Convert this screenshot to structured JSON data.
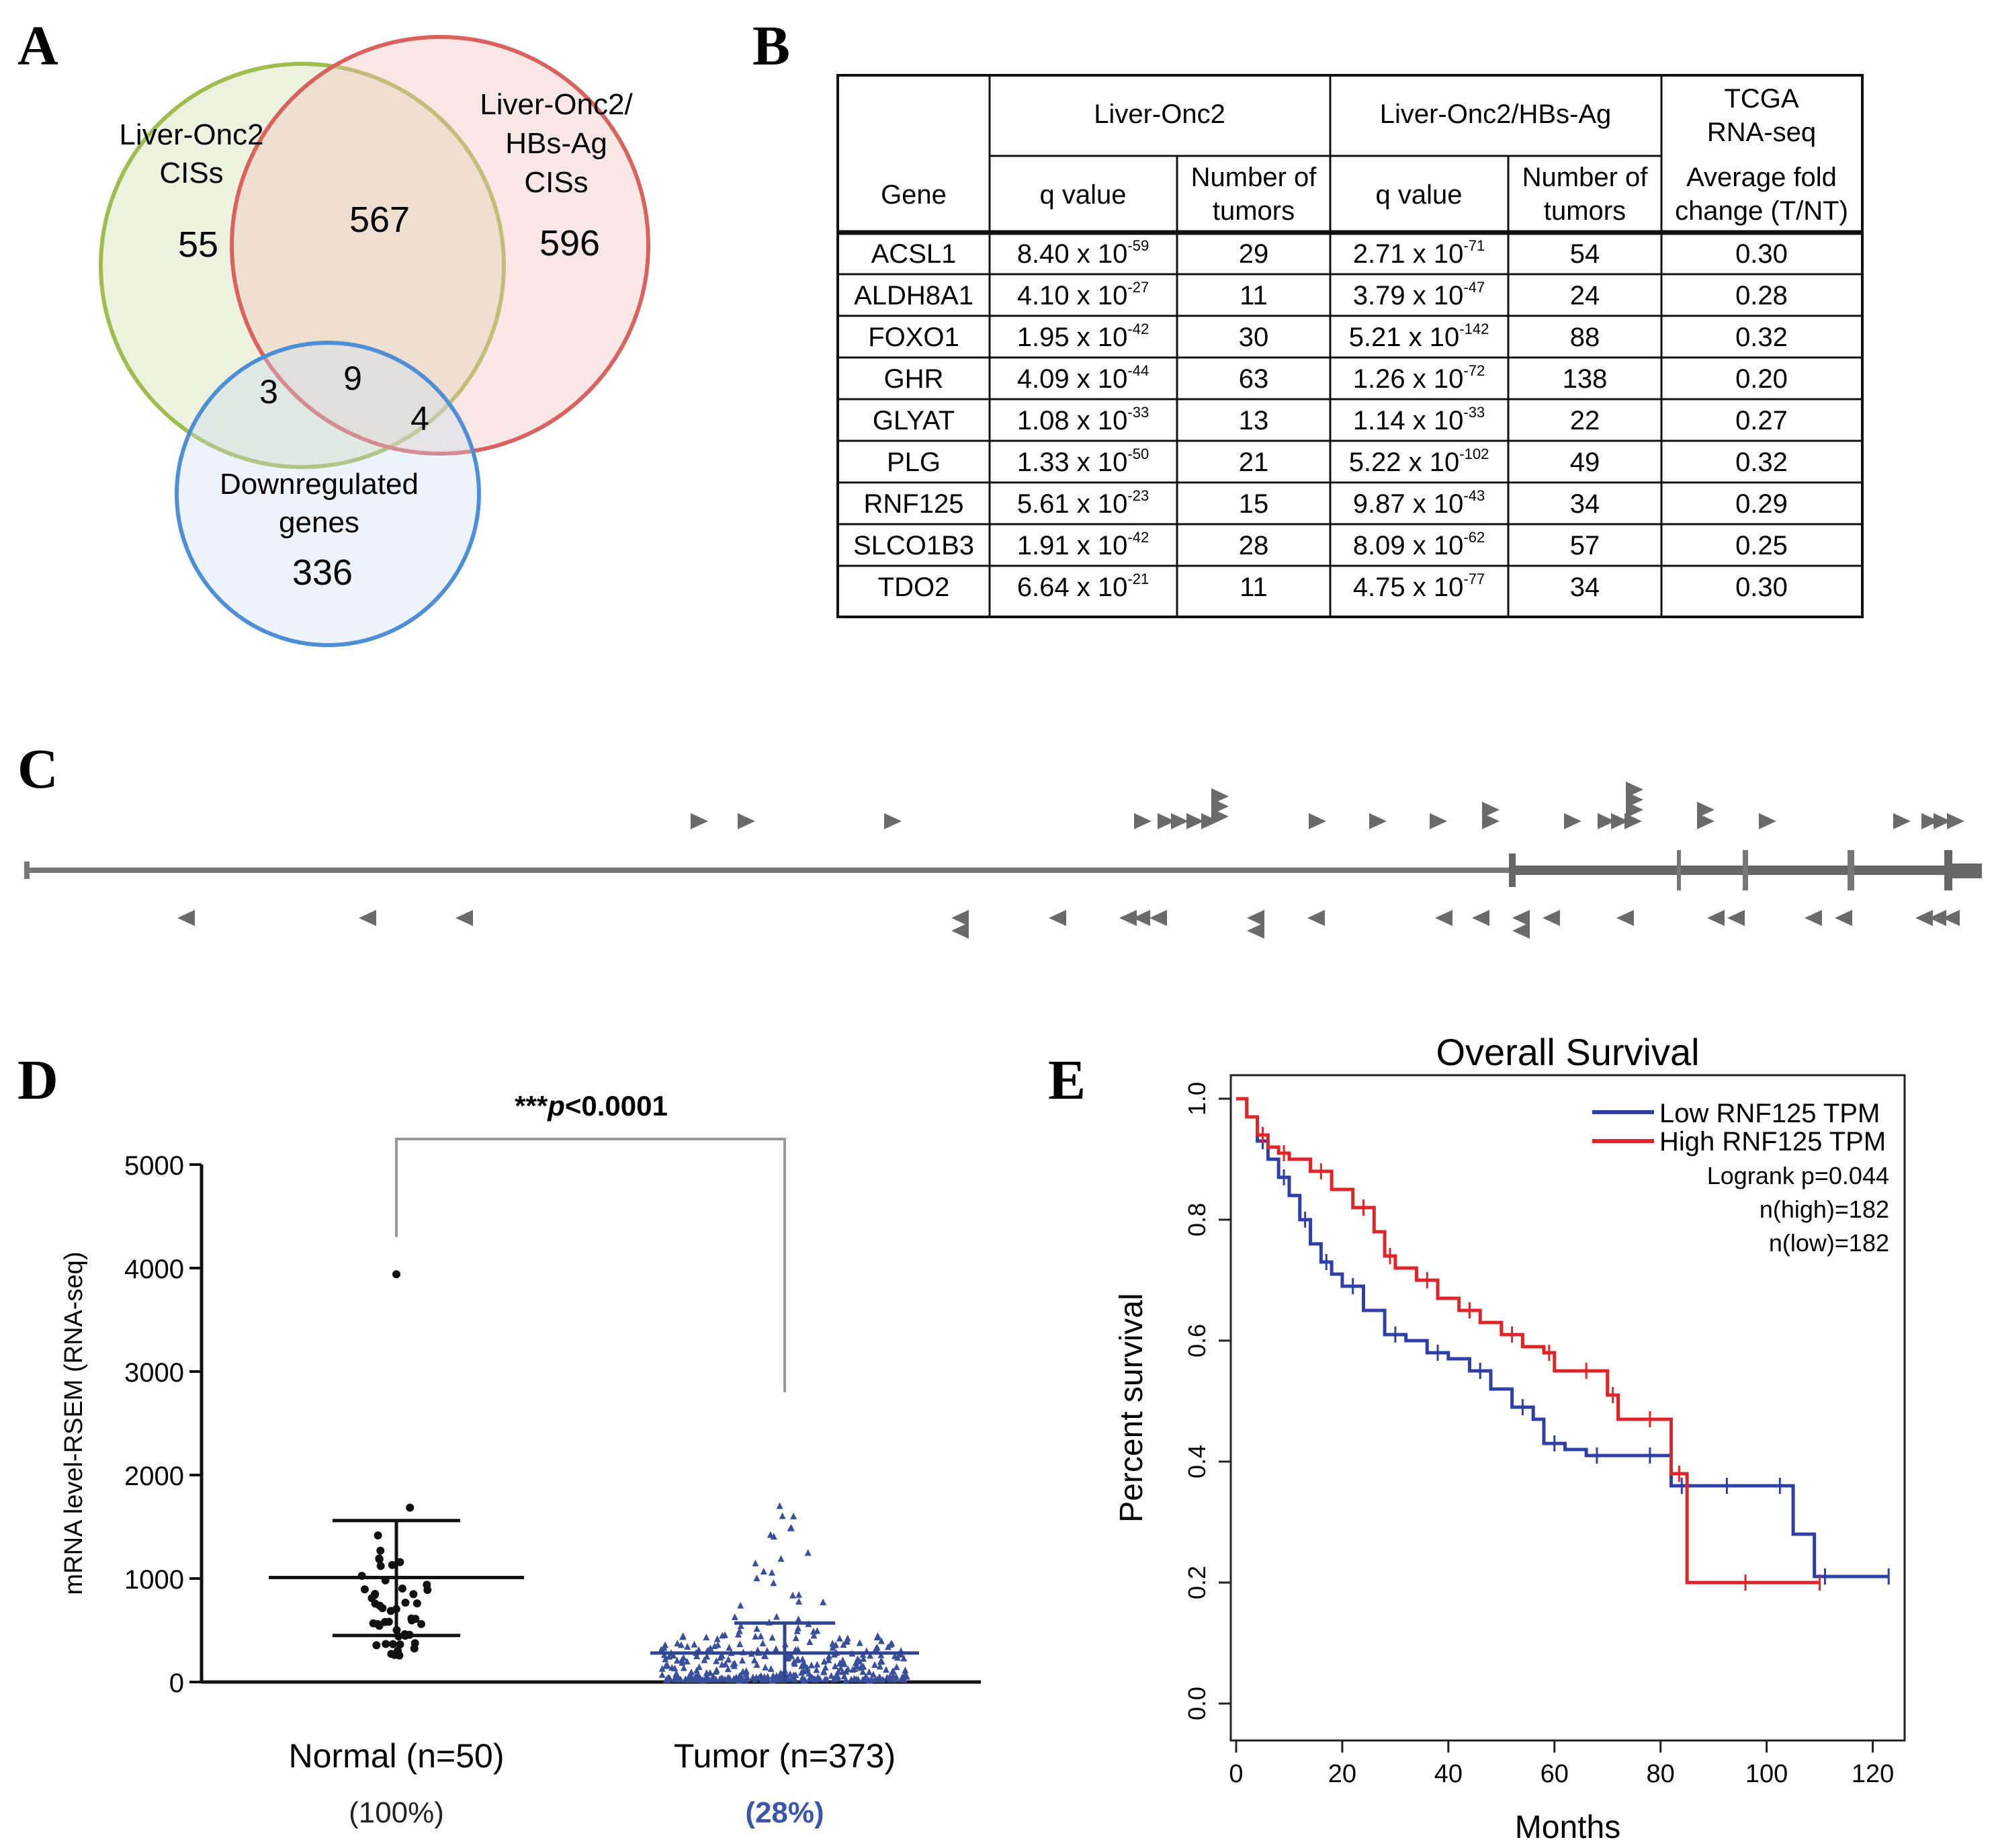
{
  "panels": {
    "a": "A",
    "b": "B",
    "c": "C",
    "d": "D",
    "e": "E"
  },
  "venn": {
    "green_label_1": "Liver-Onc2",
    "green_label_2": "CISs",
    "red_label_1": "Liver-Onc2/",
    "red_label_2": "HBs-Ag",
    "red_label_3": "CISs",
    "blue_label_1": "Downregulated",
    "blue_label_2": "genes",
    "green_only": "55",
    "green_red": "567",
    "red_only": "596",
    "green_blue": "3",
    "all_three": "9",
    "red_blue": "4",
    "blue_only": "336",
    "colors": {
      "green": "#9ebd4e",
      "red": "#d9625e",
      "blue": "#4e8ed6"
    }
  },
  "table": {
    "group_liver_onc2": "Liver-Onc2",
    "group_hbs": "Liver-Onc2/HBs-Ag",
    "group_tcga_1": "TCGA",
    "group_tcga_2": "RNA-seq",
    "col_gene": "Gene",
    "col_q1": "q value",
    "col_n1_a": "Number of",
    "col_n1_b": "tumors",
    "col_q2": "q value",
    "col_n2_a": "Number of",
    "col_n2_b": "tumors",
    "col_fc_a": "Average fold",
    "col_fc_b": "change (T/NT)",
    "rows": [
      {
        "gene": "ACSL1",
        "q1": "8.40 x 10",
        "q1e": "-59",
        "n1": "29",
        "q2": "2.71 x 10",
        "q2e": "-71",
        "n2": "54",
        "fc": "0.30"
      },
      {
        "gene": "ALDH8A1",
        "q1": "4.10 x 10",
        "q1e": "-27",
        "n1": "11",
        "q2": "3.79 x 10",
        "q2e": "-47",
        "n2": "24",
        "fc": "0.28"
      },
      {
        "gene": "FOXO1",
        "q1": "1.95 x 10",
        "q1e": "-42",
        "n1": "30",
        "q2": "5.21 x 10",
        "q2e": "-142",
        "n2": "88",
        "fc": "0.32"
      },
      {
        "gene": "GHR",
        "q1": "4.09 x 10",
        "q1e": "-44",
        "n1": "63",
        "q2": "1.26 x 10",
        "q2e": "-72",
        "n2": "138",
        "fc": "0.20"
      },
      {
        "gene": "GLYAT",
        "q1": "1.08 x 10",
        "q1e": "-33",
        "n1": "13",
        "q2": "1.14 x 10",
        "q2e": "-33",
        "n2": "22",
        "fc": "0.27"
      },
      {
        "gene": "PLG",
        "q1": "1.33 x 10",
        "q1e": "-50",
        "n1": "21",
        "q2": "5.22 x 10",
        "q2e": "-102",
        "n2": "49",
        "fc": "0.32"
      },
      {
        "gene": "RNF125",
        "q1": "5.61 x 10",
        "q1e": "-23",
        "n1": "15",
        "q2": "9.87 x 10",
        "q2e": "-43",
        "n2": "34",
        "fc": "0.29"
      },
      {
        "gene": "SLCO1B3",
        "q1": "1.91 x 10",
        "q1e": "-42",
        "n1": "28",
        "q2": "8.09 x 10",
        "q2e": "-62",
        "n2": "57",
        "fc": "0.25"
      },
      {
        "gene": "TDO2",
        "q1": "6.64 x 10",
        "q1e": "-21",
        "n1": "11",
        "q2": "4.75 x 10",
        "q2e": "-77",
        "n2": "34",
        "fc": "0.30"
      }
    ]
  },
  "chart_data": [
    {
      "type": "scatter",
      "panel": "D",
      "title": "",
      "annotation_stars": "***",
      "annotation_p": "p",
      "annotation_value": "<0.0001",
      "ylabel": "mRNA level-RSEM (RNA-seq)",
      "ylim": [
        0,
        5000
      ],
      "yticks": [
        "0",
        "1000",
        "2000",
        "3000",
        "4000",
        "5000"
      ],
      "ytick_values": [
        0,
        1000,
        2000,
        3000,
        4000,
        5000
      ],
      "categories": [
        "Normal (n=50)",
        "Tumor (n=373)"
      ],
      "category_pct": [
        "(100%)",
        "(28%)"
      ],
      "groups": [
        {
          "name": "Normal (n=50)",
          "mean": 1010,
          "sd_upper": 1560,
          "sd_lower": 450,
          "outlier": 3940,
          "max_cluster": 1800,
          "color": "#111111",
          "marker": "circle"
        },
        {
          "name": "Tumor (n=373)",
          "mean": 280,
          "sd_upper": 570,
          "sd_lower": 0,
          "max_cluster": 1800,
          "color": "#3a4f9c",
          "marker": "triangle"
        }
      ],
      "pct_colors": [
        "#222222",
        "#3b55a8"
      ]
    },
    {
      "type": "line",
      "panel": "E",
      "title": "Overall Survival",
      "xlabel": "Months",
      "ylabel": "Percent survival",
      "xlim": [
        0,
        125
      ],
      "ylim": [
        0,
        1.0
      ],
      "xticks": [
        "0",
        "20",
        "40",
        "60",
        "80",
        "100",
        "120"
      ],
      "xtick_values": [
        0,
        20,
        40,
        60,
        80,
        100,
        120
      ],
      "yticks": [
        "0.0",
        "0.2",
        "0.4",
        "0.6",
        "0.8",
        "1.0"
      ],
      "ytick_values": [
        0,
        0.2,
        0.4,
        0.6,
        0.8,
        1.0
      ],
      "legend": {
        "low": "Low RNF125 TPM",
        "high": "High RNF125 TPM",
        "logrank": "Logrank p=0.044",
        "n_high": "n(high)=182",
        "n_low": "n(low)=182"
      },
      "series": [
        {
          "name": "Low RNF125 TPM",
          "color": "#2e3fa8",
          "x": [
            0,
            2,
            4,
            6,
            8,
            10,
            12,
            14,
            16,
            18,
            20,
            24,
            28,
            32,
            36,
            40,
            44,
            48,
            52,
            56,
            58,
            62,
            66,
            70,
            76,
            80,
            82,
            86,
            90,
            95,
            100,
            105,
            109,
            113,
            123
          ],
          "y": [
            1.0,
            0.97,
            0.93,
            0.9,
            0.87,
            0.84,
            0.8,
            0.76,
            0.73,
            0.71,
            0.69,
            0.65,
            0.61,
            0.6,
            0.58,
            0.57,
            0.55,
            0.52,
            0.49,
            0.47,
            0.43,
            0.42,
            0.41,
            0.41,
            0.41,
            0.41,
            0.36,
            0.36,
            0.36,
            0.36,
            0.36,
            0.28,
            0.21,
            0.21,
            0.21
          ]
        },
        {
          "name": "High RNF125 TPM",
          "color": "#e0242a",
          "x": [
            0,
            2,
            4,
            6,
            8,
            10,
            14,
            18,
            22,
            26,
            28,
            30,
            34,
            38,
            42,
            46,
            50,
            54,
            58,
            60,
            64,
            68,
            70,
            72,
            76,
            80,
            82,
            85,
            92,
            100,
            110
          ],
          "y": [
            1.0,
            0.97,
            0.94,
            0.92,
            0.91,
            0.9,
            0.88,
            0.85,
            0.82,
            0.78,
            0.74,
            0.72,
            0.7,
            0.67,
            0.65,
            0.63,
            0.61,
            0.59,
            0.58,
            0.55,
            0.55,
            0.55,
            0.51,
            0.47,
            0.47,
            0.47,
            0.38,
            0.2,
            0.2,
            0.2,
            0.2
          ]
        }
      ]
    }
  ]
}
